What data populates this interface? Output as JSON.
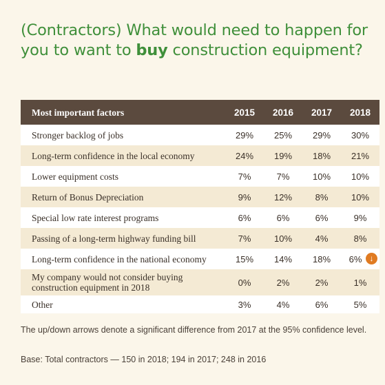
{
  "title": {
    "before": "(Contractors) What would need to happen for you to want to ",
    "bold": "buy",
    "after": " construction equipment?"
  },
  "chart_data": {
    "type": "table",
    "columns": [
      "Most important factors",
      "2015",
      "2016",
      "2017",
      "2018"
    ],
    "rows": [
      {
        "factor": "Stronger backlog of jobs",
        "values": [
          "29%",
          "25%",
          "29%",
          "30%"
        ],
        "down_2018": false
      },
      {
        "factor": "Long-term confidence in the local economy",
        "values": [
          "24%",
          "19%",
          "18%",
          "21%"
        ],
        "down_2018": false
      },
      {
        "factor": "Lower equipment costs",
        "values": [
          "7%",
          "7%",
          "10%",
          "10%"
        ],
        "down_2018": false
      },
      {
        "factor": "Return of Bonus Depreciation",
        "values": [
          "9%",
          "12%",
          "8%",
          "10%"
        ],
        "down_2018": false
      },
      {
        "factor": "Special low rate interest programs",
        "values": [
          "6%",
          "6%",
          "6%",
          "9%"
        ],
        "down_2018": false
      },
      {
        "factor": "Passing of a long-term highway funding bill",
        "values": [
          "7%",
          "10%",
          "4%",
          "8%"
        ],
        "down_2018": false
      },
      {
        "factor": "Long-term confidence in the national economy",
        "values": [
          "15%",
          "14%",
          "18%",
          "6%"
        ],
        "down_2018": true
      },
      {
        "factor": "My company would not consider buying construction equipment in 2018",
        "values": [
          "0%",
          "2%",
          "2%",
          "1%"
        ],
        "down_2018": false
      },
      {
        "factor": "Other",
        "values": [
          "3%",
          "4%",
          "6%",
          "5%"
        ],
        "down_2018": false
      }
    ],
    "down_arrow_glyph": "↓"
  },
  "notes": {
    "arrows": "The up/down arrows denote a significant difference from 2017 at the 95% confidence level.",
    "base": "Base: Total contractors — 150 in 2018; 194 in 2017; 248 in 2016"
  },
  "colors": {
    "title": "#3f8f3a",
    "header_bg": "#5b4a3e",
    "row_alt": "#f4ead4",
    "down_arrow": "#e07b22"
  }
}
